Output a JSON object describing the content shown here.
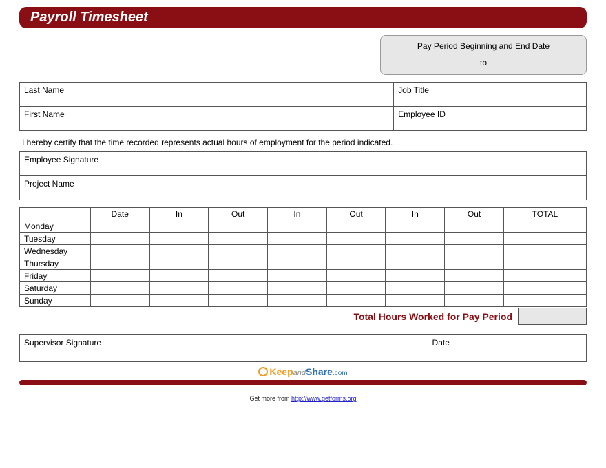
{
  "colors": {
    "brand": "#8a0f14",
    "pp_bg": "#e7e7e7",
    "border": "#555555",
    "bg": "#ffffff"
  },
  "header": {
    "title": "Payroll Timesheet"
  },
  "pay_period": {
    "label": "Pay Period Beginning and End Date",
    "joiner": "to"
  },
  "info": {
    "last_name": "Last Name",
    "job_title": "Job Title",
    "first_name": "First Name",
    "employee_id": "Employee ID"
  },
  "certification": "I hereby certify that the time recorded represents actual hours of employment for the period indicated.",
  "sig": {
    "employee_signature": "Employee Signature",
    "project_name": "Project Name"
  },
  "time_table": {
    "headers": [
      "",
      "Date",
      "In",
      "Out",
      "In",
      "Out",
      "In",
      "Out",
      "TOTAL"
    ],
    "days": [
      "Monday",
      "Tuesday",
      "Wednesday",
      "Thursday",
      "Friday",
      "Saturday",
      "Sunday"
    ]
  },
  "total_label": "Total Hours Worked for Pay Period",
  "supervisor": {
    "signature": "Supervisor Signature",
    "date": "Date"
  },
  "logo": {
    "keep": "Keep",
    "and": "and",
    "share": "Share",
    "dotcom": ".com"
  },
  "footer": {
    "prefix": "Get more from ",
    "url_text": "http://www.getforms.org"
  }
}
